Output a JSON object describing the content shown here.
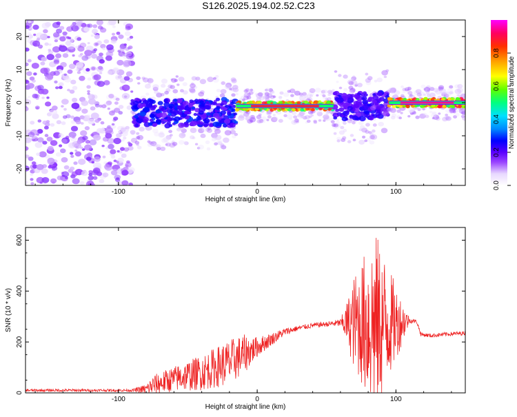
{
  "figure": {
    "title": "S126.2025.194.02.52.C23"
  },
  "chart_data": [
    {
      "type": "heatmap",
      "xlabel": "Height of straight line (km)",
      "ylabel": "Frequency (Hz)",
      "xlim": [
        -167,
        150
      ],
      "ylim": [
        -25,
        25
      ],
      "xticks": [
        -100,
        0,
        100
      ],
      "yticks": [
        -20,
        -10,
        0,
        10,
        20
      ],
      "colorbar": {
        "label": "Normalized spectral amplitude",
        "range": [
          0,
          1
        ],
        "ticks": [
          "0.0",
          "0.2",
          "0.4",
          "0.6",
          "0.8"
        ],
        "colors": [
          "#ffffff",
          "#e8d8ff",
          "#9a44ff",
          "#5a00ff",
          "#0000ff",
          "#0088ff",
          "#00e0ff",
          "#00ff80",
          "#60ff00",
          "#ffff00",
          "#ffa000",
          "#ff3000",
          "#ff0060",
          "#ff00ff"
        ]
      },
      "features": [
        {
          "name": "noise region",
          "x_range": [
            -167,
            -90
          ],
          "y_range": [
            -25,
            25
          ],
          "amplitude": 0.15
        },
        {
          "name": "emerging signal",
          "x_range": [
            -90,
            -15
          ],
          "y_center": -3,
          "amplitude": 0.35
        },
        {
          "name": "strong stable signal",
          "x_range": [
            -15,
            55
          ],
          "y_center": -1,
          "amplitude": 0.9
        },
        {
          "name": "scattered region",
          "x_range": [
            55,
            95
          ],
          "y_center": -1,
          "amplitude": 0.3
        },
        {
          "name": "strong stable signal",
          "x_range": [
            95,
            150
          ],
          "y_center": 0,
          "amplitude": 0.95
        }
      ]
    },
    {
      "type": "line",
      "xlabel": "Height of straight line (km)",
      "ylabel": "SNR (10 * v/v)",
      "xlim": [
        -167,
        150
      ],
      "ylim": [
        0,
        650
      ],
      "xticks": [
        -100,
        0,
        100
      ],
      "yticks": [
        0,
        200,
        400,
        600
      ],
      "color": "#ee2222",
      "envelope": {
        "x": [
          -167,
          -120,
          -90,
          -80,
          -75,
          -60,
          -40,
          -20,
          -10,
          0,
          10,
          20,
          30,
          40,
          50,
          60,
          65,
          70,
          75,
          80,
          85,
          90,
          95,
          100,
          110,
          115,
          118,
          125,
          135,
          150
        ],
        "base": [
          10,
          10,
          10,
          15,
          30,
          55,
          80,
          120,
          150,
          180,
          210,
          240,
          255,
          265,
          270,
          275,
          275,
          275,
          275,
          275,
          275,
          275,
          275,
          275,
          285,
          280,
          230,
          225,
          230,
          235
        ],
        "amplitude": [
          5,
          5,
          5,
          20,
          40,
          50,
          70,
          90,
          80,
          40,
          25,
          15,
          10,
          10,
          10,
          15,
          90,
          190,
          240,
          320,
          360,
          300,
          220,
          150,
          10,
          8,
          8,
          8,
          8,
          8
        ]
      }
    }
  ]
}
